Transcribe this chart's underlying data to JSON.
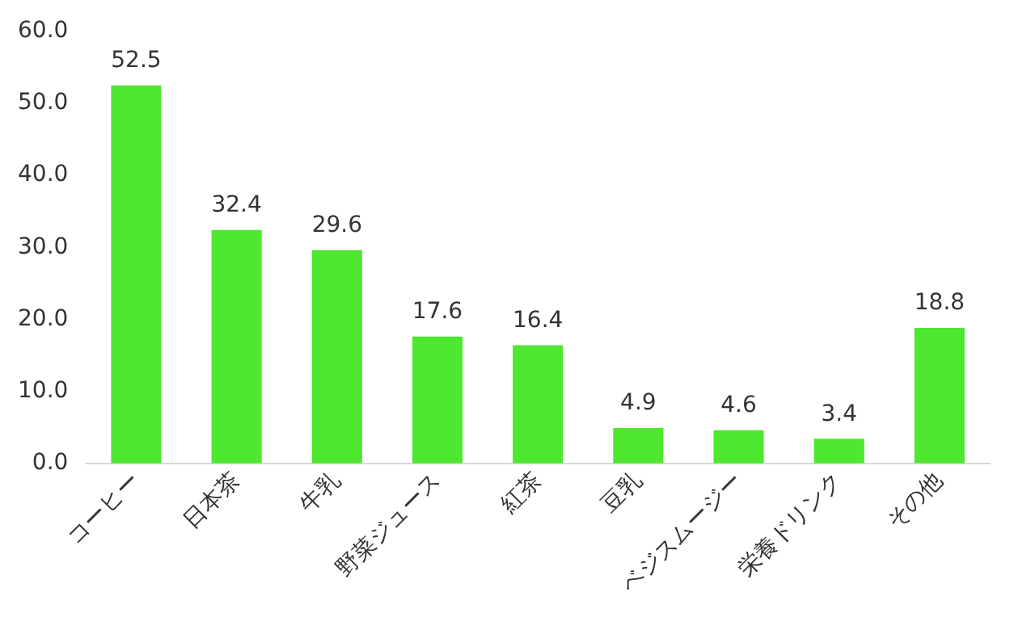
{
  "chart_data": {
    "type": "bar",
    "categories": [
      "コーヒー",
      "日本茶",
      "牛乳",
      "野菜ジュース",
      "紅茶",
      "豆乳",
      "ベジスムージー",
      "栄養ドリンク",
      "その他"
    ],
    "values": [
      52.5,
      32.4,
      29.6,
      17.6,
      16.4,
      4.9,
      4.6,
      3.4,
      18.8
    ],
    "color": "#4de82f",
    "ylim": [
      0,
      60
    ],
    "yticks": [
      {
        "value": 0,
        "label": "0.0"
      },
      {
        "value": 10,
        "label": "10.0"
      },
      {
        "value": 20,
        "label": "20.0"
      },
      {
        "value": 30,
        "label": "30.0"
      },
      {
        "value": 40,
        "label": "40.0"
      },
      {
        "value": 50,
        "label": "50.0"
      },
      {
        "value": 60,
        "label": "60.0"
      }
    ],
    "data_labels": true,
    "grid": false,
    "legend": false
  }
}
